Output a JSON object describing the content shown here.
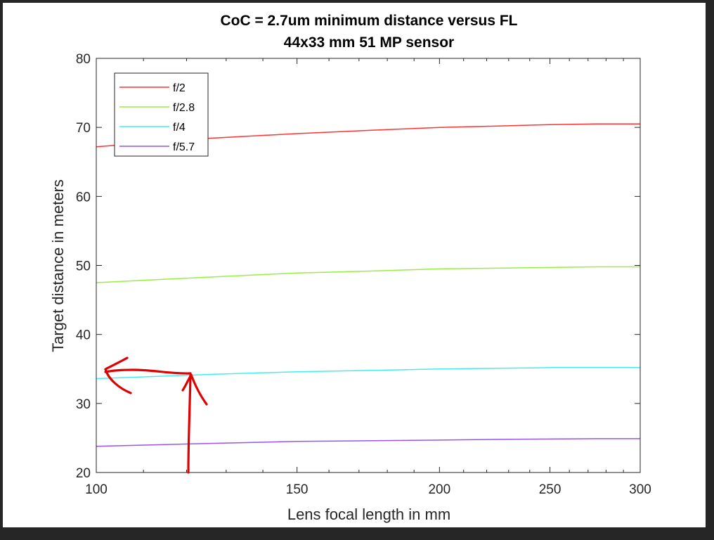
{
  "chart_data": {
    "type": "line",
    "title": "CoC = 2.7um minimum distance versus FL",
    "subtitle": "44x33 mm 51 MP sensor",
    "xlabel": "Lens focal length in mm",
    "ylabel": "Target distance in meters",
    "xlim": [
      100,
      300
    ],
    "ylim": [
      20,
      80
    ],
    "x_scale": "log",
    "x_ticks": [
      100,
      150,
      200,
      250,
      300
    ],
    "y_ticks": [
      20,
      30,
      40,
      50,
      60,
      70,
      80
    ],
    "grid": false,
    "legend_position": "top-left",
    "x": [
      100,
      125,
      150,
      175,
      200,
      225,
      250,
      275,
      300
    ],
    "series": [
      {
        "name": "f/2",
        "color": "#ff3333",
        "values": [
          67.2,
          68.4,
          69.1,
          69.6,
          70.0,
          70.2,
          70.4,
          70.5,
          70.5
        ]
      },
      {
        "name": "f/2.8",
        "color": "#99ee44",
        "values": [
          47.5,
          48.3,
          48.9,
          49.2,
          49.5,
          49.6,
          49.7,
          49.8,
          49.8
        ]
      },
      {
        "name": "f/4",
        "color": "#44eeee",
        "values": [
          33.6,
          34.2,
          34.6,
          34.8,
          35.0,
          35.1,
          35.2,
          35.2,
          35.2
        ]
      },
      {
        "name": "f/5.7",
        "color": "#9955ee",
        "values": [
          23.8,
          24.2,
          24.5,
          24.6,
          24.7,
          24.8,
          24.85,
          24.9,
          24.9
        ]
      }
    ],
    "annotations": [
      {
        "kind": "hand-drawn-arrow",
        "color": "#e00000",
        "description_visible": ""
      }
    ]
  }
}
